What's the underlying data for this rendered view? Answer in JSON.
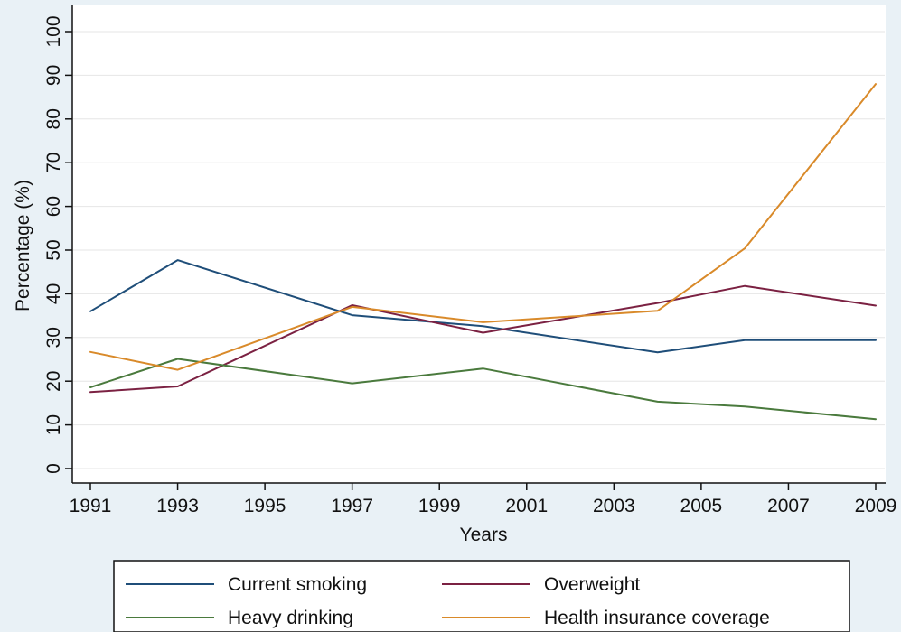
{
  "chart_data": {
    "type": "line",
    "xlabel": "Years",
    "ylabel": "Percentage (%)",
    "xlim": [
      1991,
      2009
    ],
    "ylim": [
      0,
      100
    ],
    "x_ticks": [
      "1991",
      "1993",
      "1995",
      "1997",
      "1999",
      "2001",
      "2003",
      "2005",
      "2007",
      "2009"
    ],
    "y_ticks": [
      "0",
      "10",
      "20",
      "30",
      "40",
      "50",
      "60",
      "70",
      "80",
      "90",
      "100"
    ],
    "grid": true,
    "legend_position": "bottom",
    "series": [
      {
        "name": "Current smoking",
        "color": "#1f4e79",
        "x": [
          1991,
          1993,
          1997,
          2000,
          2004,
          2006,
          2009
        ],
        "values": [
          36.0,
          47.7,
          35.1,
          32.6,
          26.6,
          29.4,
          29.4
        ]
      },
      {
        "name": "Overweight",
        "color": "#7b2142",
        "x": [
          1991,
          1993,
          1997,
          2000,
          2004,
          2006,
          2009
        ],
        "values": [
          17.5,
          18.8,
          37.4,
          31.1,
          37.9,
          41.8,
          37.3
        ]
      },
      {
        "name": "Heavy drinking",
        "color": "#4a7a3d",
        "x": [
          1991,
          1993,
          1997,
          2000,
          2004,
          2006,
          2009
        ],
        "values": [
          18.6,
          25.1,
          19.5,
          22.9,
          15.3,
          14.2,
          11.3
        ]
      },
      {
        "name": "Health insurance coverage",
        "color": "#d98a2a",
        "x": [
          1991,
          1993,
          1997,
          2000,
          2004,
          2006,
          2009
        ],
        "values": [
          26.7,
          22.6,
          37.0,
          33.5,
          36.1,
          50.4,
          88.0
        ]
      }
    ]
  }
}
